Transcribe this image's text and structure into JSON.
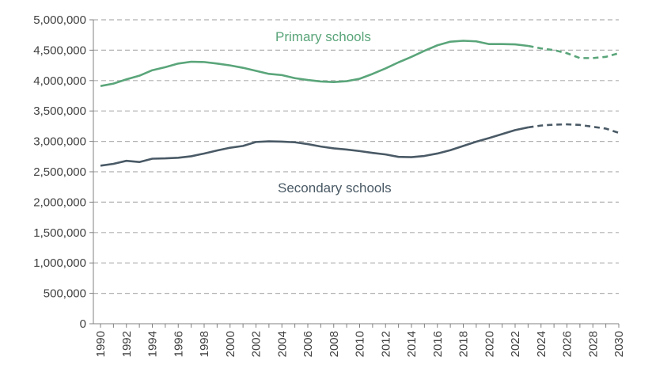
{
  "chart_data": {
    "type": "line",
    "x": [
      1990,
      1991,
      1992,
      1993,
      1994,
      1995,
      1996,
      1997,
      1998,
      1999,
      2000,
      2001,
      2002,
      2003,
      2004,
      2005,
      2006,
      2007,
      2008,
      2009,
      2010,
      2011,
      2012,
      2013,
      2014,
      2015,
      2016,
      2017,
      2018,
      2019,
      2020,
      2021,
      2022,
      2023,
      2024,
      2025,
      2026,
      2027,
      2028,
      2029,
      2030
    ],
    "ylim": [
      0,
      5000000
    ],
    "yticks": [
      0,
      500000,
      1000000,
      1500000,
      2000000,
      2500000,
      3000000,
      3500000,
      4000000,
      4500000,
      5000000
    ],
    "ytick_labels": [
      "0",
      "500,000",
      "1,000,000",
      "1,500,000",
      "2,000,000",
      "2,500,000",
      "3,000,000",
      "3,500,000",
      "4,000,000",
      "4,500,000",
      "5,000,000"
    ],
    "xticks": [
      1990,
      1992,
      1994,
      1996,
      1998,
      2000,
      2002,
      2004,
      2006,
      2008,
      2010,
      2012,
      2014,
      2016,
      2018,
      2020,
      2022,
      2024,
      2026,
      2028,
      2030
    ],
    "xtick_labels": [
      "1990",
      "1992",
      "1994",
      "1996",
      "1998",
      "2000",
      "2002",
      "2004",
      "2006",
      "2008",
      "2010",
      "2012",
      "2014",
      "2016",
      "2018",
      "2020",
      "2022",
      "2024",
      "2026",
      "2028",
      "2030"
    ],
    "grid": "horizontal dashed",
    "projection_start": 2023,
    "series": [
      {
        "name": "Primary schools",
        "color": "#5aa57a",
        "values": [
          3910000,
          3950000,
          4020000,
          4080000,
          4170000,
          4220000,
          4280000,
          4310000,
          4305000,
          4280000,
          4250000,
          4210000,
          4160000,
          4110000,
          4090000,
          4040000,
          4010000,
          3985000,
          3975000,
          3990000,
          4030000,
          4110000,
          4200000,
          4300000,
          4390000,
          4490000,
          4580000,
          4640000,
          4655000,
          4645000,
          4600000,
          4600000,
          4595000,
          4570000,
          4530000,
          4500000,
          4450000,
          4370000,
          4370000,
          4390000,
          4450000
        ]
      },
      {
        "name": "Secondary schools",
        "color": "#4a5a66",
        "values": [
          2600000,
          2630000,
          2680000,
          2660000,
          2715000,
          2720000,
          2730000,
          2755000,
          2800000,
          2850000,
          2895000,
          2925000,
          2990000,
          3000000,
          2995000,
          2985000,
          2955000,
          2915000,
          2885000,
          2865000,
          2840000,
          2810000,
          2785000,
          2745000,
          2740000,
          2760000,
          2800000,
          2855000,
          2925000,
          2995000,
          3055000,
          3120000,
          3185000,
          3230000,
          3260000,
          3275000,
          3280000,
          3270000,
          3240000,
          3210000,
          3140000
        ]
      }
    ]
  }
}
